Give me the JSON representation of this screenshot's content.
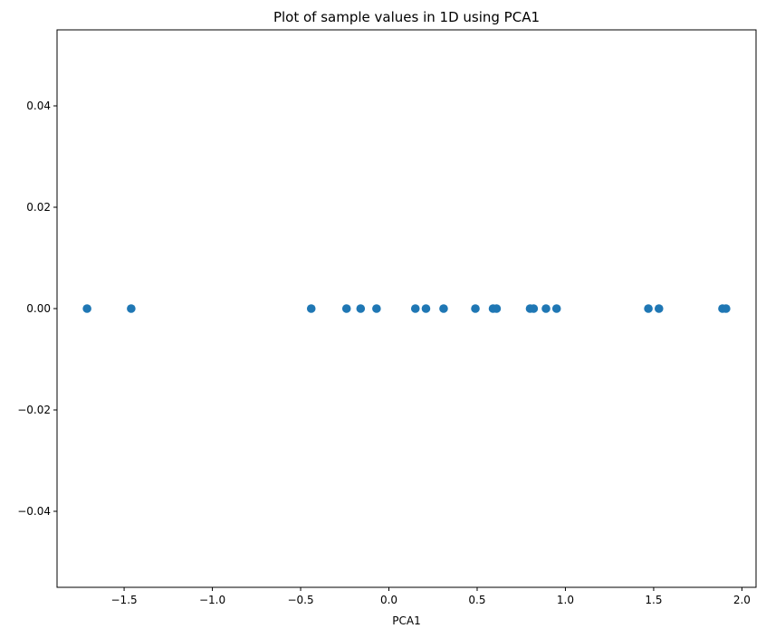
{
  "chart_data": {
    "type": "scatter",
    "title": "Plot of sample values in 1D using PCA1",
    "xlabel": "PCA1",
    "ylabel": "",
    "xlim": [
      -1.88,
      2.08
    ],
    "ylim": [
      -0.055,
      0.055
    ],
    "xticks": [
      -1.5,
      -1.0,
      -0.5,
      0.0,
      0.5,
      1.0,
      1.5,
      2.0
    ],
    "xtick_labels": [
      "−1.5",
      "−1.0",
      "−0.5",
      "0.0",
      "0.5",
      "1.0",
      "1.5",
      "2.0"
    ],
    "yticks": [
      -0.04,
      -0.02,
      0.0,
      0.02,
      0.04
    ],
    "ytick_labels": [
      "−0.04",
      "−0.02",
      "0.00",
      "0.02",
      "0.04"
    ],
    "grid": false,
    "legend": "none",
    "marker_color": "#1f77b4",
    "series": [
      {
        "x": [
          -1.71,
          -1.46,
          -0.44,
          -0.24,
          -0.16,
          -0.07,
          0.15,
          0.21,
          0.31,
          0.49,
          0.59,
          0.61,
          0.8,
          0.82,
          0.89,
          0.95,
          1.47,
          1.53,
          1.89,
          1.91
        ],
        "y": [
          0,
          0,
          0,
          0,
          0,
          0,
          0,
          0,
          0,
          0,
          0,
          0,
          0,
          0,
          0,
          0,
          0,
          0,
          0,
          0
        ]
      }
    ]
  }
}
